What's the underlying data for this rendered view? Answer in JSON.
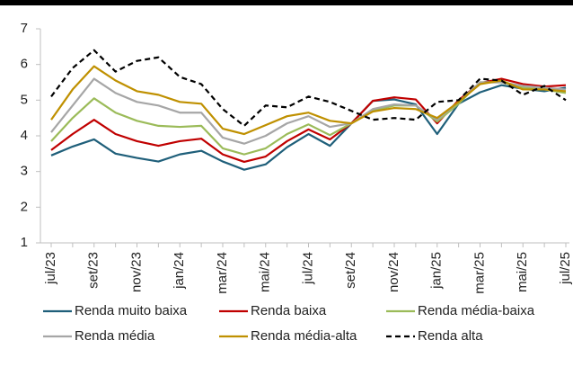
{
  "chart_data": {
    "type": "line",
    "categories": [
      "jul/23",
      null,
      "set/23",
      null,
      "nov/23",
      null,
      "jan/24",
      null,
      "mar/24",
      null,
      "mai/24",
      null,
      "jul/24",
      null,
      "set/24",
      null,
      "nov/24",
      null,
      "jan/25",
      null,
      "mar/25",
      null,
      "mai/25",
      null,
      "jul/25"
    ],
    "ylim": [
      1,
      7
    ],
    "yticks": [
      1,
      2,
      3,
      4,
      5,
      6,
      7
    ],
    "grid": false,
    "legend": "bottom",
    "series": [
      {
        "name": "Renda muito baixa",
        "color": "#1f5f7a",
        "values": [
          3.45,
          3.7,
          3.9,
          3.5,
          3.38,
          3.28,
          3.48,
          3.58,
          3.28,
          3.05,
          3.2,
          3.68,
          4.05,
          3.72,
          4.35,
          4.98,
          5.02,
          4.88,
          4.05,
          4.9,
          5.22,
          5.42,
          5.32,
          5.25,
          5.35
        ]
      },
      {
        "name": "Renda baixa",
        "color": "#c00000",
        "values": [
          3.6,
          4.05,
          4.45,
          4.05,
          3.85,
          3.72,
          3.85,
          3.92,
          3.48,
          3.27,
          3.42,
          3.85,
          4.18,
          3.9,
          4.35,
          4.98,
          5.08,
          5.02,
          4.35,
          5.0,
          5.48,
          5.6,
          5.45,
          5.38,
          5.42
        ]
      },
      {
        "name": "Renda média-baixa",
        "color": "#9bbb59",
        "values": [
          3.85,
          4.5,
          5.05,
          4.65,
          4.42,
          4.28,
          4.25,
          4.28,
          3.65,
          3.48,
          3.65,
          4.05,
          4.32,
          4.02,
          4.35,
          4.7,
          4.85,
          4.85,
          4.4,
          4.9,
          5.5,
          5.5,
          5.35,
          5.3,
          5.2
        ]
      },
      {
        "name": "Renda média",
        "color": "#a6a6a6",
        "values": [
          4.1,
          4.85,
          5.6,
          5.2,
          4.95,
          4.85,
          4.65,
          4.65,
          3.95,
          3.78,
          4.0,
          4.35,
          4.55,
          4.25,
          4.35,
          4.75,
          4.88,
          4.85,
          4.45,
          4.95,
          5.5,
          5.5,
          5.4,
          5.35,
          5.3
        ]
      },
      {
        "name": "Renda média-alta",
        "color": "#bf9000",
        "values": [
          4.45,
          5.3,
          5.95,
          5.55,
          5.25,
          5.15,
          4.95,
          4.9,
          4.2,
          4.05,
          4.3,
          4.55,
          4.65,
          4.42,
          4.35,
          4.68,
          4.78,
          4.75,
          4.5,
          4.95,
          5.45,
          5.55,
          5.3,
          5.3,
          5.25
        ]
      },
      {
        "name": "Renda alta",
        "color": "#000000",
        "dashed": true,
        "values": [
          5.1,
          5.9,
          6.4,
          5.8,
          6.1,
          6.2,
          5.65,
          5.45,
          4.75,
          4.28,
          4.85,
          4.8,
          5.1,
          4.95,
          4.7,
          4.45,
          4.5,
          4.45,
          4.95,
          5.0,
          5.6,
          5.55,
          5.15,
          5.4,
          5.0
        ]
      }
    ]
  }
}
